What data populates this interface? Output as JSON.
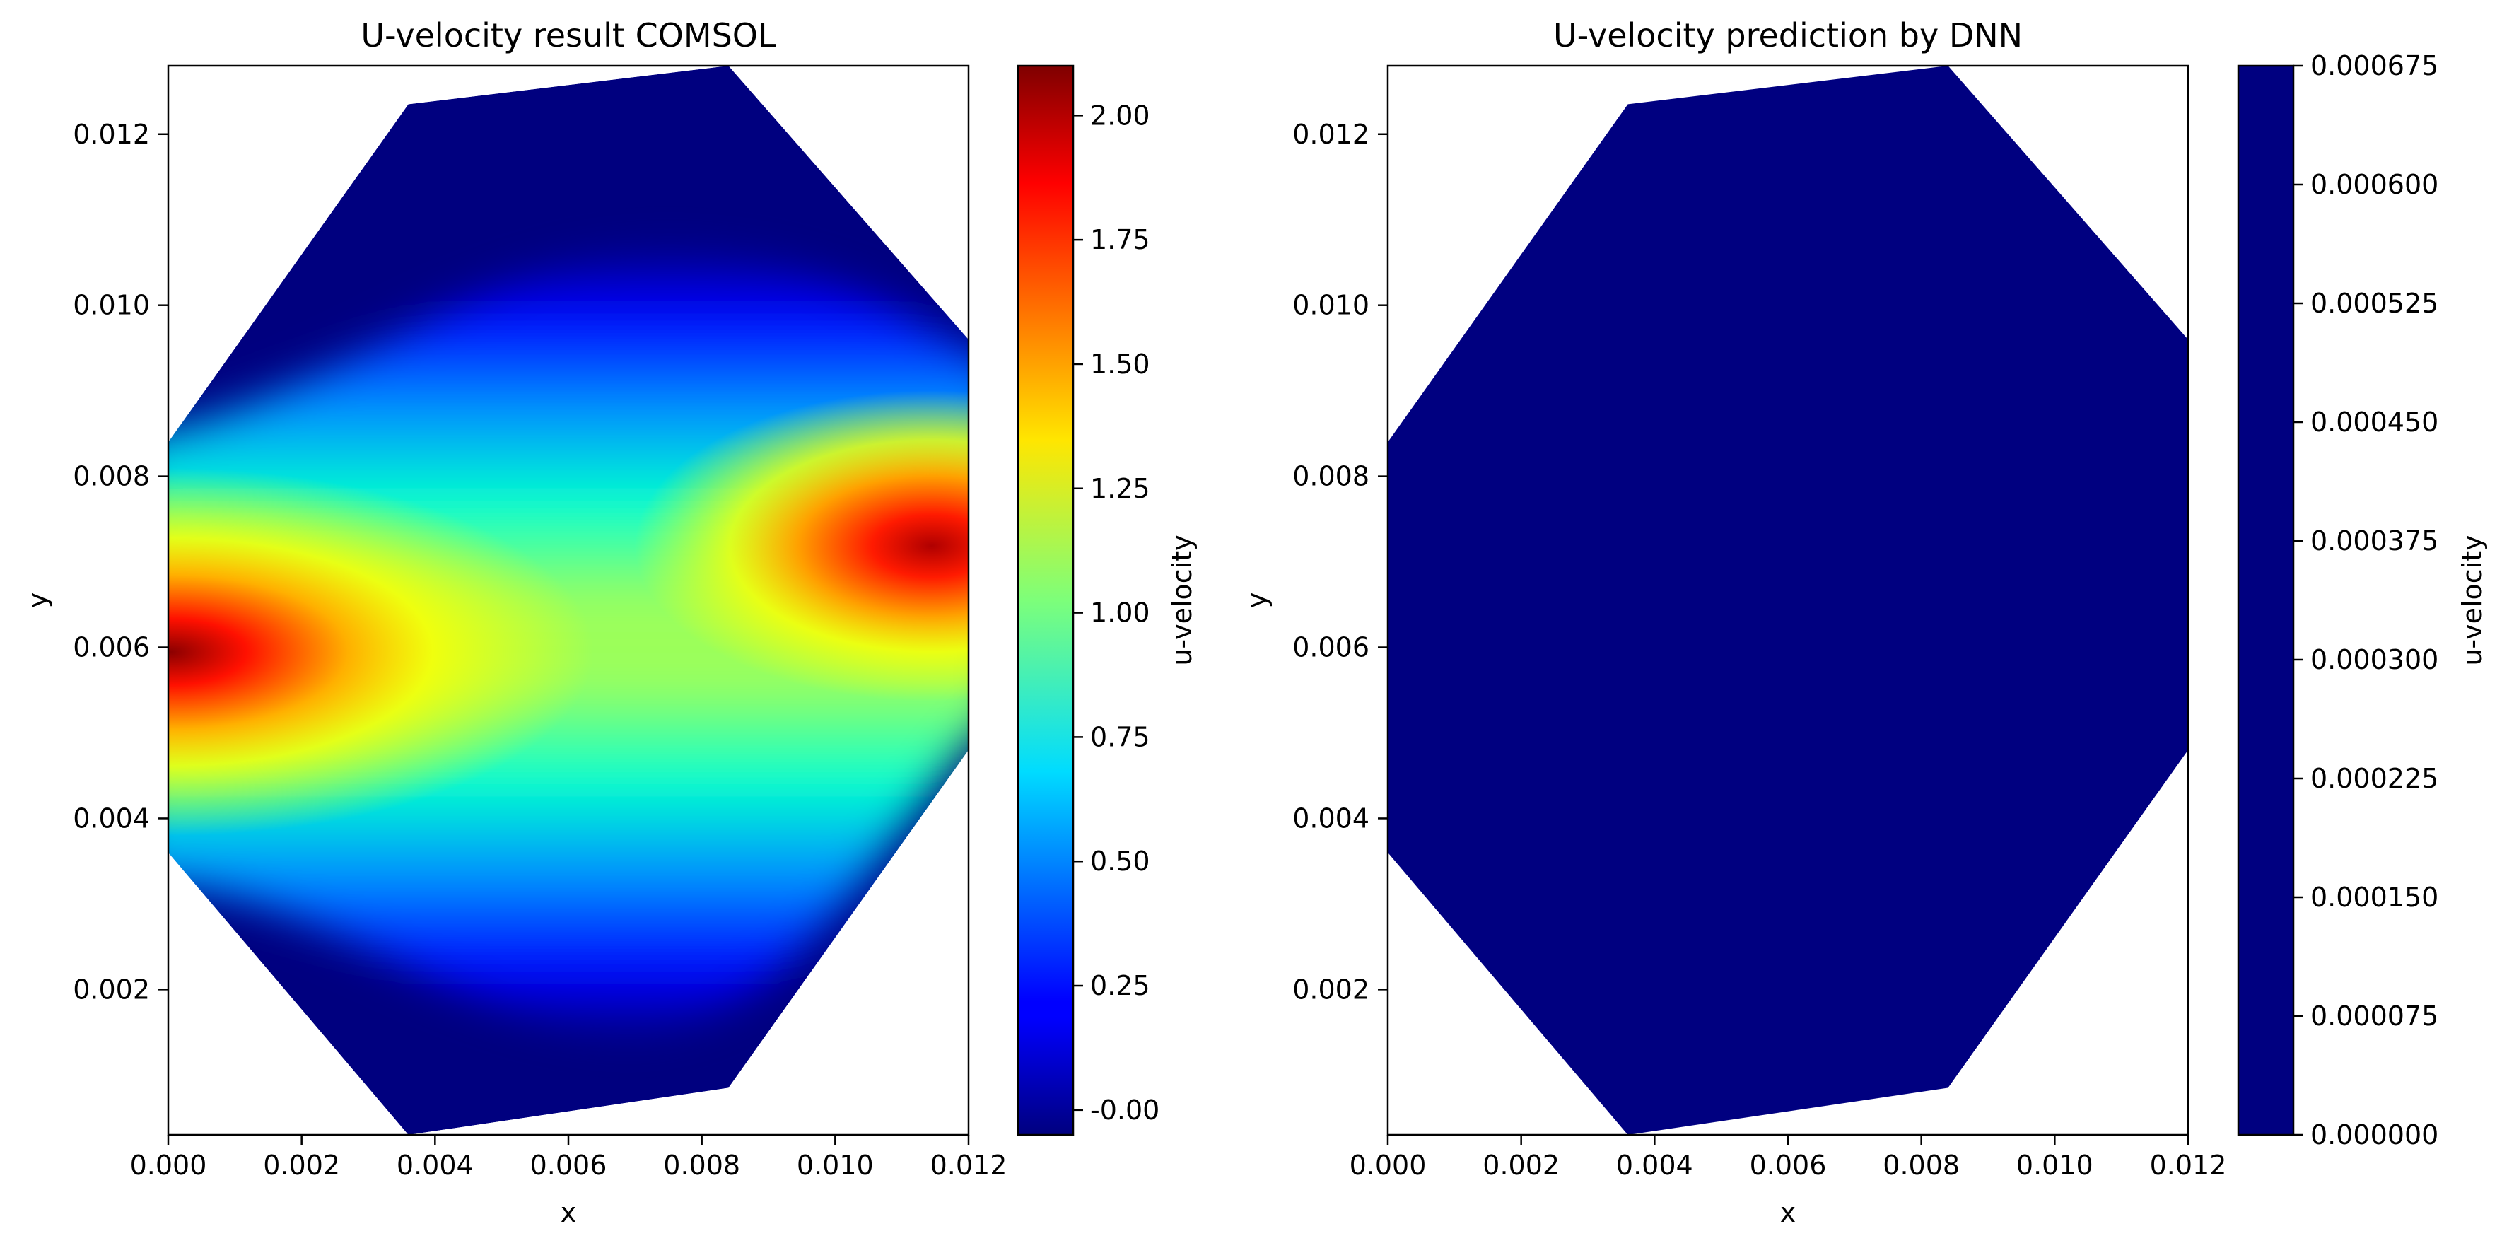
{
  "chart_data": [
    {
      "type": "heatmap",
      "title": "U-velocity result COMSOL",
      "xlabel": "x",
      "ylabel": "y",
      "xlim": [
        0.0,
        0.012
      ],
      "ylim": [
        0.0003,
        0.0128
      ],
      "x_ticks": [
        "0.000",
        "0.002",
        "0.004",
        "0.006",
        "0.008",
        "0.010",
        "0.012"
      ],
      "y_ticks": [
        "0.002",
        "0.004",
        "0.006",
        "0.008",
        "0.010",
        "0.012"
      ],
      "grid": false,
      "colormap": "jet",
      "domain_polygon": [
        [
          0.0,
          0.0084
        ],
        [
          0.0036,
          0.01235
        ],
        [
          0.0084,
          0.0128
        ],
        [
          0.012,
          0.0096
        ],
        [
          0.012,
          0.0048
        ],
        [
          0.0084,
          0.00085
        ],
        [
          0.0036,
          0.0003
        ],
        [
          0.0,
          0.0036
        ]
      ],
      "field_features": {
        "inlet_jet_center": [
          0.0,
          0.006
        ],
        "outlet_jet_center": [
          0.0115,
          0.0072
        ],
        "max_velocity": 2.05,
        "min_velocity": 0.0
      },
      "colorbar": {
        "label": "u-velocity",
        "range": [
          -0.05,
          2.1
        ],
        "ticks": [
          "-0.00",
          "0.25",
          "0.50",
          "0.75",
          "1.00",
          "1.25",
          "1.50",
          "1.75",
          "2.00"
        ]
      }
    },
    {
      "type": "heatmap",
      "title": "U-velocity prediction by DNN",
      "xlabel": "x",
      "ylabel": "y",
      "xlim": [
        0.0,
        0.012
      ],
      "ylim": [
        0.0003,
        0.0128
      ],
      "x_ticks": [
        "0.000",
        "0.002",
        "0.004",
        "0.006",
        "0.008",
        "0.010",
        "0.012"
      ],
      "y_ticks": [
        "0.002",
        "0.004",
        "0.006",
        "0.008",
        "0.010",
        "0.012"
      ],
      "grid": false,
      "colormap": "jet",
      "domain_polygon": [
        [
          0.0,
          0.0084
        ],
        [
          0.0036,
          0.01235
        ],
        [
          0.0084,
          0.0128
        ],
        [
          0.012,
          0.0096
        ],
        [
          0.012,
          0.0048
        ],
        [
          0.0084,
          0.00085
        ],
        [
          0.0036,
          0.0003
        ],
        [
          0.0,
          0.0036
        ]
      ],
      "field_value": 0.0,
      "fill_color": "#000080",
      "colorbar": {
        "label": "u-velocity",
        "range": [
          0.0,
          0.000675
        ],
        "ticks": [
          "0.000000",
          "0.000075",
          "0.000150",
          "0.000225",
          "0.000300",
          "0.000375",
          "0.000450",
          "0.000525",
          "0.000600",
          "0.000675"
        ]
      }
    }
  ]
}
